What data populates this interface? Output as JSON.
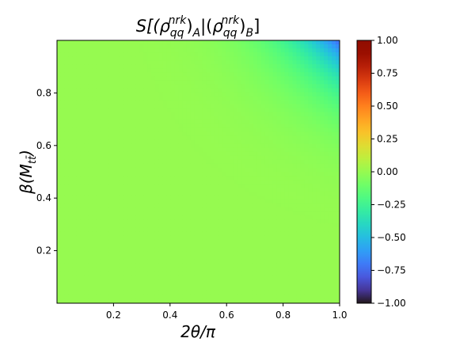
{
  "chart_data": {
    "type": "heatmap",
    "title_parts": {
      "s": "S[(",
      "rho1": "ρ",
      "sub1": "qq",
      "sup1": "nrk",
      "paren1": ")",
      "subA": "A",
      "sep": "|(",
      "rho2": "ρ",
      "sub2": "qq",
      "sup2": "nrk",
      "paren2": ")",
      "subB": "B",
      "close": "]"
    },
    "xlabel": "2θ/π",
    "ylabel_parts": {
      "beta": "β(M",
      "sub": "tt̄",
      "close": ")"
    },
    "xlim": [
      0,
      1.0
    ],
    "ylim": [
      0,
      1.0
    ],
    "x_ticks": [
      "0.2",
      "0.4",
      "0.6",
      "0.8",
      "1.0"
    ],
    "x_tick_values": [
      0.2,
      0.4,
      0.6,
      0.8,
      1.0
    ],
    "y_ticks": [
      "0.2",
      "0.4",
      "0.6",
      "0.8"
    ],
    "y_tick_values": [
      0.2,
      0.4,
      0.6,
      0.8
    ],
    "colorbar": {
      "range": [
        -1.0,
        1.0
      ],
      "ticks": [
        "1.00",
        "0.75",
        "0.50",
        "0.25",
        "0.00",
        "−0.25",
        "−0.50",
        "−0.75",
        "−1.00"
      ],
      "tick_values": [
        1.0,
        0.75,
        0.5,
        0.25,
        0.0,
        -0.25,
        -0.5,
        -0.75,
        -1.0
      ],
      "colormap": "turbo"
    },
    "field_description": {
      "baseline_value": 0.0,
      "min_value_at_corner": -0.75,
      "corner": "top-right (x=1.0, y=1.0)"
    }
  }
}
